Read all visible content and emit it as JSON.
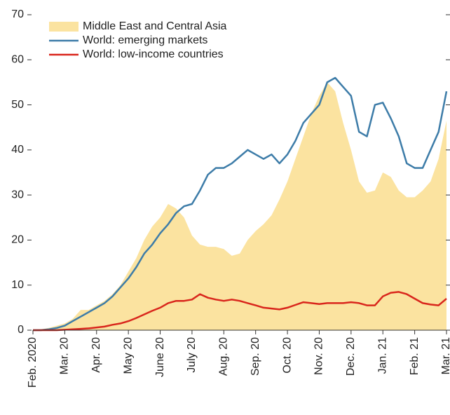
{
  "chart_data": {
    "type": "line",
    "x": [
      0,
      0.25,
      0.5,
      0.75,
      1,
      1.25,
      1.5,
      1.75,
      2,
      2.25,
      2.5,
      2.75,
      3,
      3.25,
      3.5,
      3.75,
      4,
      4.25,
      4.5,
      4.75,
      5,
      5.25,
      5.5,
      5.75,
      6,
      6.25,
      6.5,
      6.75,
      7,
      7.25,
      7.5,
      7.75,
      8,
      8.25,
      8.5,
      8.75,
      9,
      9.25,
      9.5,
      9.75,
      10,
      10.25,
      10.5,
      10.75,
      11,
      11.25,
      11.5,
      11.75,
      12,
      12.25,
      12.5,
      12.75,
      13
    ],
    "series": [
      {
        "name": "Middle East and Central Asia",
        "color": "#fbe3a0",
        "kind": "area",
        "values": [
          0,
          0.2,
          0.5,
          1,
          1.5,
          2.5,
          4.5,
          4.5,
          5.5,
          6.5,
          8,
          10,
          13,
          16,
          20,
          23,
          25,
          28,
          27,
          25,
          21,
          19,
          18.5,
          18.5,
          18,
          16.5,
          17,
          20,
          22,
          23.5,
          25.5,
          29,
          33,
          38,
          43,
          48,
          52,
          55,
          53,
          46,
          40,
          33,
          30.5,
          31,
          35,
          34,
          31,
          29.5,
          29.5,
          31,
          33,
          38,
          46.5
        ]
      },
      {
        "name": "World: emerging markets",
        "color": "#3d7ca8",
        "kind": "line",
        "values": [
          0,
          0,
          0.2,
          0.5,
          1,
          2,
          3,
          4,
          5,
          6,
          7.5,
          9.5,
          11.5,
          14,
          17,
          19,
          21.5,
          23.5,
          26,
          27.5,
          28,
          31,
          34.5,
          36,
          36,
          37,
          38.5,
          40,
          39,
          38,
          39,
          37,
          39,
          42,
          46,
          48,
          50,
          55,
          56,
          54,
          52,
          44,
          43,
          50,
          50.5,
          47,
          43,
          37,
          36,
          36,
          40,
          44,
          53
        ]
      },
      {
        "name": "World: low-income countries",
        "color": "#d9261c",
        "kind": "line",
        "values": [
          0,
          0,
          0,
          0,
          0.1,
          0.2,
          0.3,
          0.4,
          0.6,
          0.8,
          1.2,
          1.5,
          2,
          2.7,
          3.5,
          4.3,
          5,
          6,
          6.5,
          6.5,
          6.8,
          8,
          7.2,
          6.8,
          6.5,
          6.8,
          6.5,
          6,
          5.5,
          5,
          4.8,
          4.6,
          5,
          5.6,
          6.2,
          6,
          5.8,
          6,
          6,
          6,
          6.2,
          6,
          5.5,
          5.5,
          7.5,
          8.3,
          8.5,
          8,
          7,
          6,
          5.7,
          5.5,
          7
        ]
      }
    ],
    "xlim": [
      0,
      13
    ],
    "xticks": [
      {
        "value": 0,
        "label": "Feb. 2020"
      },
      {
        "value": 1,
        "label": "Mar. 20"
      },
      {
        "value": 2,
        "label": "Apr. 20"
      },
      {
        "value": 3,
        "label": "May 20"
      },
      {
        "value": 4,
        "label": "June 20"
      },
      {
        "value": 5,
        "label": "July 20"
      },
      {
        "value": 6,
        "label": "Aug. 20"
      },
      {
        "value": 7,
        "label": "Sep. 20"
      },
      {
        "value": 8,
        "label": "Oct. 20"
      },
      {
        "value": 9,
        "label": "Nov. 20"
      },
      {
        "value": 10,
        "label": "Dec. 20"
      },
      {
        "value": 11,
        "label": "Jan. 21"
      },
      {
        "value": 12,
        "label": "Feb. 21"
      },
      {
        "value": 13,
        "label": "Mar. 21"
      }
    ],
    "ylim": [
      0,
      70
    ],
    "yticks": [
      0,
      10,
      20,
      30,
      40,
      50,
      60,
      70
    ],
    "legend": "upper left"
  }
}
